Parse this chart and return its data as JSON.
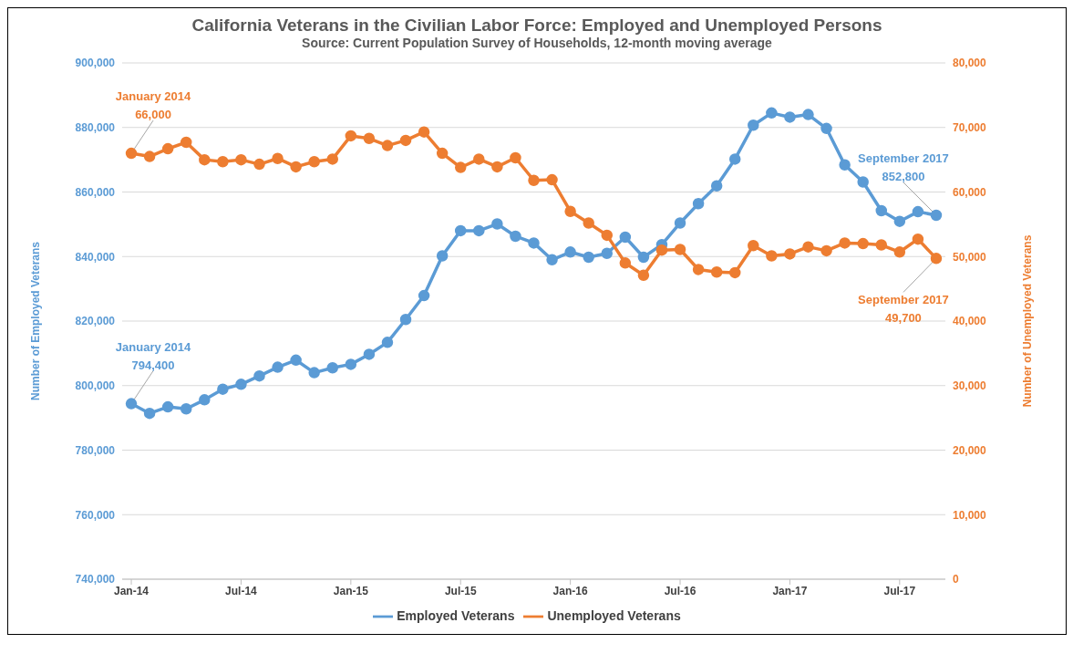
{
  "chart_data": {
    "type": "line",
    "title": "California Veterans in the Civilian Labor Force: Employed and Unemployed Persons",
    "subtitle": "Source: Current Population Survey of Households, 12-month moving average",
    "ylabel": "Number of Employed Veterans",
    "y2label": "Number of Unemployed Veterans",
    "x": [
      "2014-01",
      "2014-02",
      "2014-03",
      "2014-04",
      "2014-05",
      "2014-06",
      "2014-07",
      "2014-08",
      "2014-09",
      "2014-10",
      "2014-11",
      "2014-12",
      "2015-01",
      "2015-02",
      "2015-03",
      "2015-04",
      "2015-05",
      "2015-06",
      "2015-07",
      "2015-08",
      "2015-09",
      "2015-10",
      "2015-11",
      "2015-12",
      "2016-01",
      "2016-02",
      "2016-03",
      "2016-04",
      "2016-05",
      "2016-06",
      "2016-07",
      "2016-08",
      "2016-09",
      "2016-10",
      "2016-11",
      "2016-12",
      "2017-01",
      "2017-02",
      "2017-03",
      "2017-04",
      "2017-05",
      "2017-06",
      "2017-07",
      "2017-08",
      "2017-09"
    ],
    "series": [
      {
        "name": "Employed Veterans",
        "color": "#5b9bd5",
        "values": [
          794400,
          791400,
          793400,
          792800,
          795600,
          798900,
          800400,
          803000,
          805700,
          807900,
          804000,
          805500,
          806600,
          809700,
          813400,
          820500,
          827900,
          840200,
          848000,
          848000,
          850100,
          846300,
          844200,
          839000,
          841400,
          839800,
          841000,
          846000,
          839800,
          843700,
          850400,
          856400,
          861900,
          870200,
          880700,
          884500,
          883200,
          884000,
          879700,
          868400,
          863100,
          854200,
          850900,
          853900,
          852800
        ]
      },
      {
        "name": "Unemployed Veterans",
        "color": "#ed7d31",
        "axis": "y2",
        "values": [
          66000,
          65500,
          66700,
          67700,
          65000,
          64700,
          65000,
          64300,
          65200,
          63900,
          64700,
          65100,
          68700,
          68300,
          67200,
          68000,
          69300,
          66000,
          63800,
          65100,
          63900,
          65300,
          61800,
          61900,
          57000,
          55200,
          53300,
          49000,
          47100,
          51000,
          51100,
          48000,
          47600,
          47500,
          51700,
          50100,
          50400,
          51500,
          50900,
          52100,
          52000,
          51800,
          50700,
          52700,
          49700
        ]
      }
    ],
    "xlim": [
      "2013-12-16",
      "2017-09-16"
    ],
    "xticks": [
      {
        "value": "2014-01",
        "label": "Jan-14"
      },
      {
        "value": "2014-07",
        "label": "Jul-14"
      },
      {
        "value": "2015-01",
        "label": "Jan-15"
      },
      {
        "value": "2015-07",
        "label": "Jul-15"
      },
      {
        "value": "2016-01",
        "label": "Jan-16"
      },
      {
        "value": "2016-07",
        "label": "Jul-16"
      },
      {
        "value": "2017-01",
        "label": "Jan-17"
      },
      {
        "value": "2017-07",
        "label": "Jul-17"
      }
    ],
    "ylim": [
      740000,
      900000
    ],
    "yticks": [
      {
        "value": 740000,
        "label": "740,000"
      },
      {
        "value": 760000,
        "label": "760,000"
      },
      {
        "value": 780000,
        "label": "780,000"
      },
      {
        "value": 800000,
        "label": "800,000"
      },
      {
        "value": 820000,
        "label": "820,000"
      },
      {
        "value": 840000,
        "label": "840,000"
      },
      {
        "value": 860000,
        "label": "860,000"
      },
      {
        "value": 880000,
        "label": "880,000"
      },
      {
        "value": 900000,
        "label": "900,000"
      }
    ],
    "y2lim": [
      0,
      80000
    ],
    "y2ticks": [
      0,
      {
        "value": 10000,
        "label": "10,000"
      },
      {
        "value": 20000,
        "label": "20,000"
      },
      {
        "value": 30000,
        "label": "30,000"
      },
      {
        "value": 40000,
        "label": "40,000"
      },
      {
        "value": 50000,
        "label": "50,000"
      },
      {
        "value": 60000,
        "label": "60,000"
      },
      {
        "value": 70000,
        "label": "70,000"
      },
      {
        "value": 80000,
        "label": "80,000"
      }
    ],
    "annotations": [
      {
        "text": "January 2014\n794,400",
        "x": "2014-01",
        "y": 794400
      },
      "January 2014\n66,000",
      {
        "text": "September 2017\n852,800",
        "x": "2017-09",
        "y": 852800
      },
      "September 2017\n49,700"
    ],
    "grid": "y",
    "legend": "bottom",
    "marker": "circle",
    "line_style": "solid"
  }
}
